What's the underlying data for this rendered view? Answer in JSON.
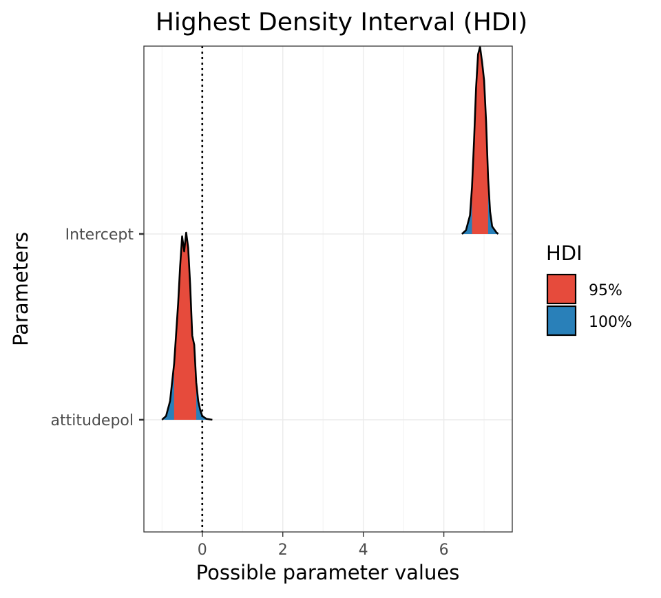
{
  "chart_data": {
    "type": "ridgeline-density",
    "title": "Highest Density Interval (HDI)",
    "xlabel": "Possible parameter values",
    "ylabel": "Parameters",
    "xlim": [
      -1.45,
      7.7
    ],
    "x_ticks": [
      0,
      2,
      4,
      6
    ],
    "x_tick_labels": [
      "0",
      "2",
      "4",
      "6"
    ],
    "categories": [
      "attitudepol",
      "Intercept"
    ],
    "reference_line": {
      "x": 0,
      "style": "dotted"
    },
    "grid": true,
    "legend": {
      "title": "HDI",
      "position": "right",
      "entries": [
        {
          "label": "95%",
          "color": "#E64B3C"
        },
        {
          "label": "100%",
          "color": "#2980B9"
        }
      ]
    },
    "series": [
      {
        "parameter": "attitudepol",
        "hdi_95": [
          -0.7,
          -0.15
        ],
        "hdi_100": [
          -0.95,
          0.15
        ],
        "density_x": [
          -1.0,
          -0.9,
          -0.8,
          -0.7,
          -0.6,
          -0.55,
          -0.5,
          -0.45,
          -0.4,
          -0.35,
          -0.3,
          -0.25,
          -0.2,
          -0.15,
          -0.1,
          -0.05,
          0.0,
          0.1,
          0.25
        ],
        "density_scale": [
          0.0,
          0.02,
          0.1,
          0.3,
          0.62,
          0.82,
          0.98,
          0.9,
          1.0,
          0.92,
          0.72,
          0.45,
          0.4,
          0.2,
          0.1,
          0.05,
          0.02,
          0.005,
          0.0
        ]
      },
      {
        "parameter": "Intercept",
        "hdi_95": [
          6.7,
          7.1
        ],
        "hdi_100": [
          6.45,
          7.35
        ],
        "density_x": [
          6.45,
          6.55,
          6.65,
          6.7,
          6.75,
          6.8,
          6.85,
          6.9,
          6.95,
          7.0,
          7.05,
          7.1,
          7.15,
          7.2,
          7.3,
          7.35
        ],
        "density_scale": [
          0.0,
          0.02,
          0.1,
          0.25,
          0.5,
          0.78,
          0.96,
          1.0,
          0.92,
          0.82,
          0.6,
          0.3,
          0.12,
          0.04,
          0.01,
          0.0
        ]
      }
    ]
  }
}
